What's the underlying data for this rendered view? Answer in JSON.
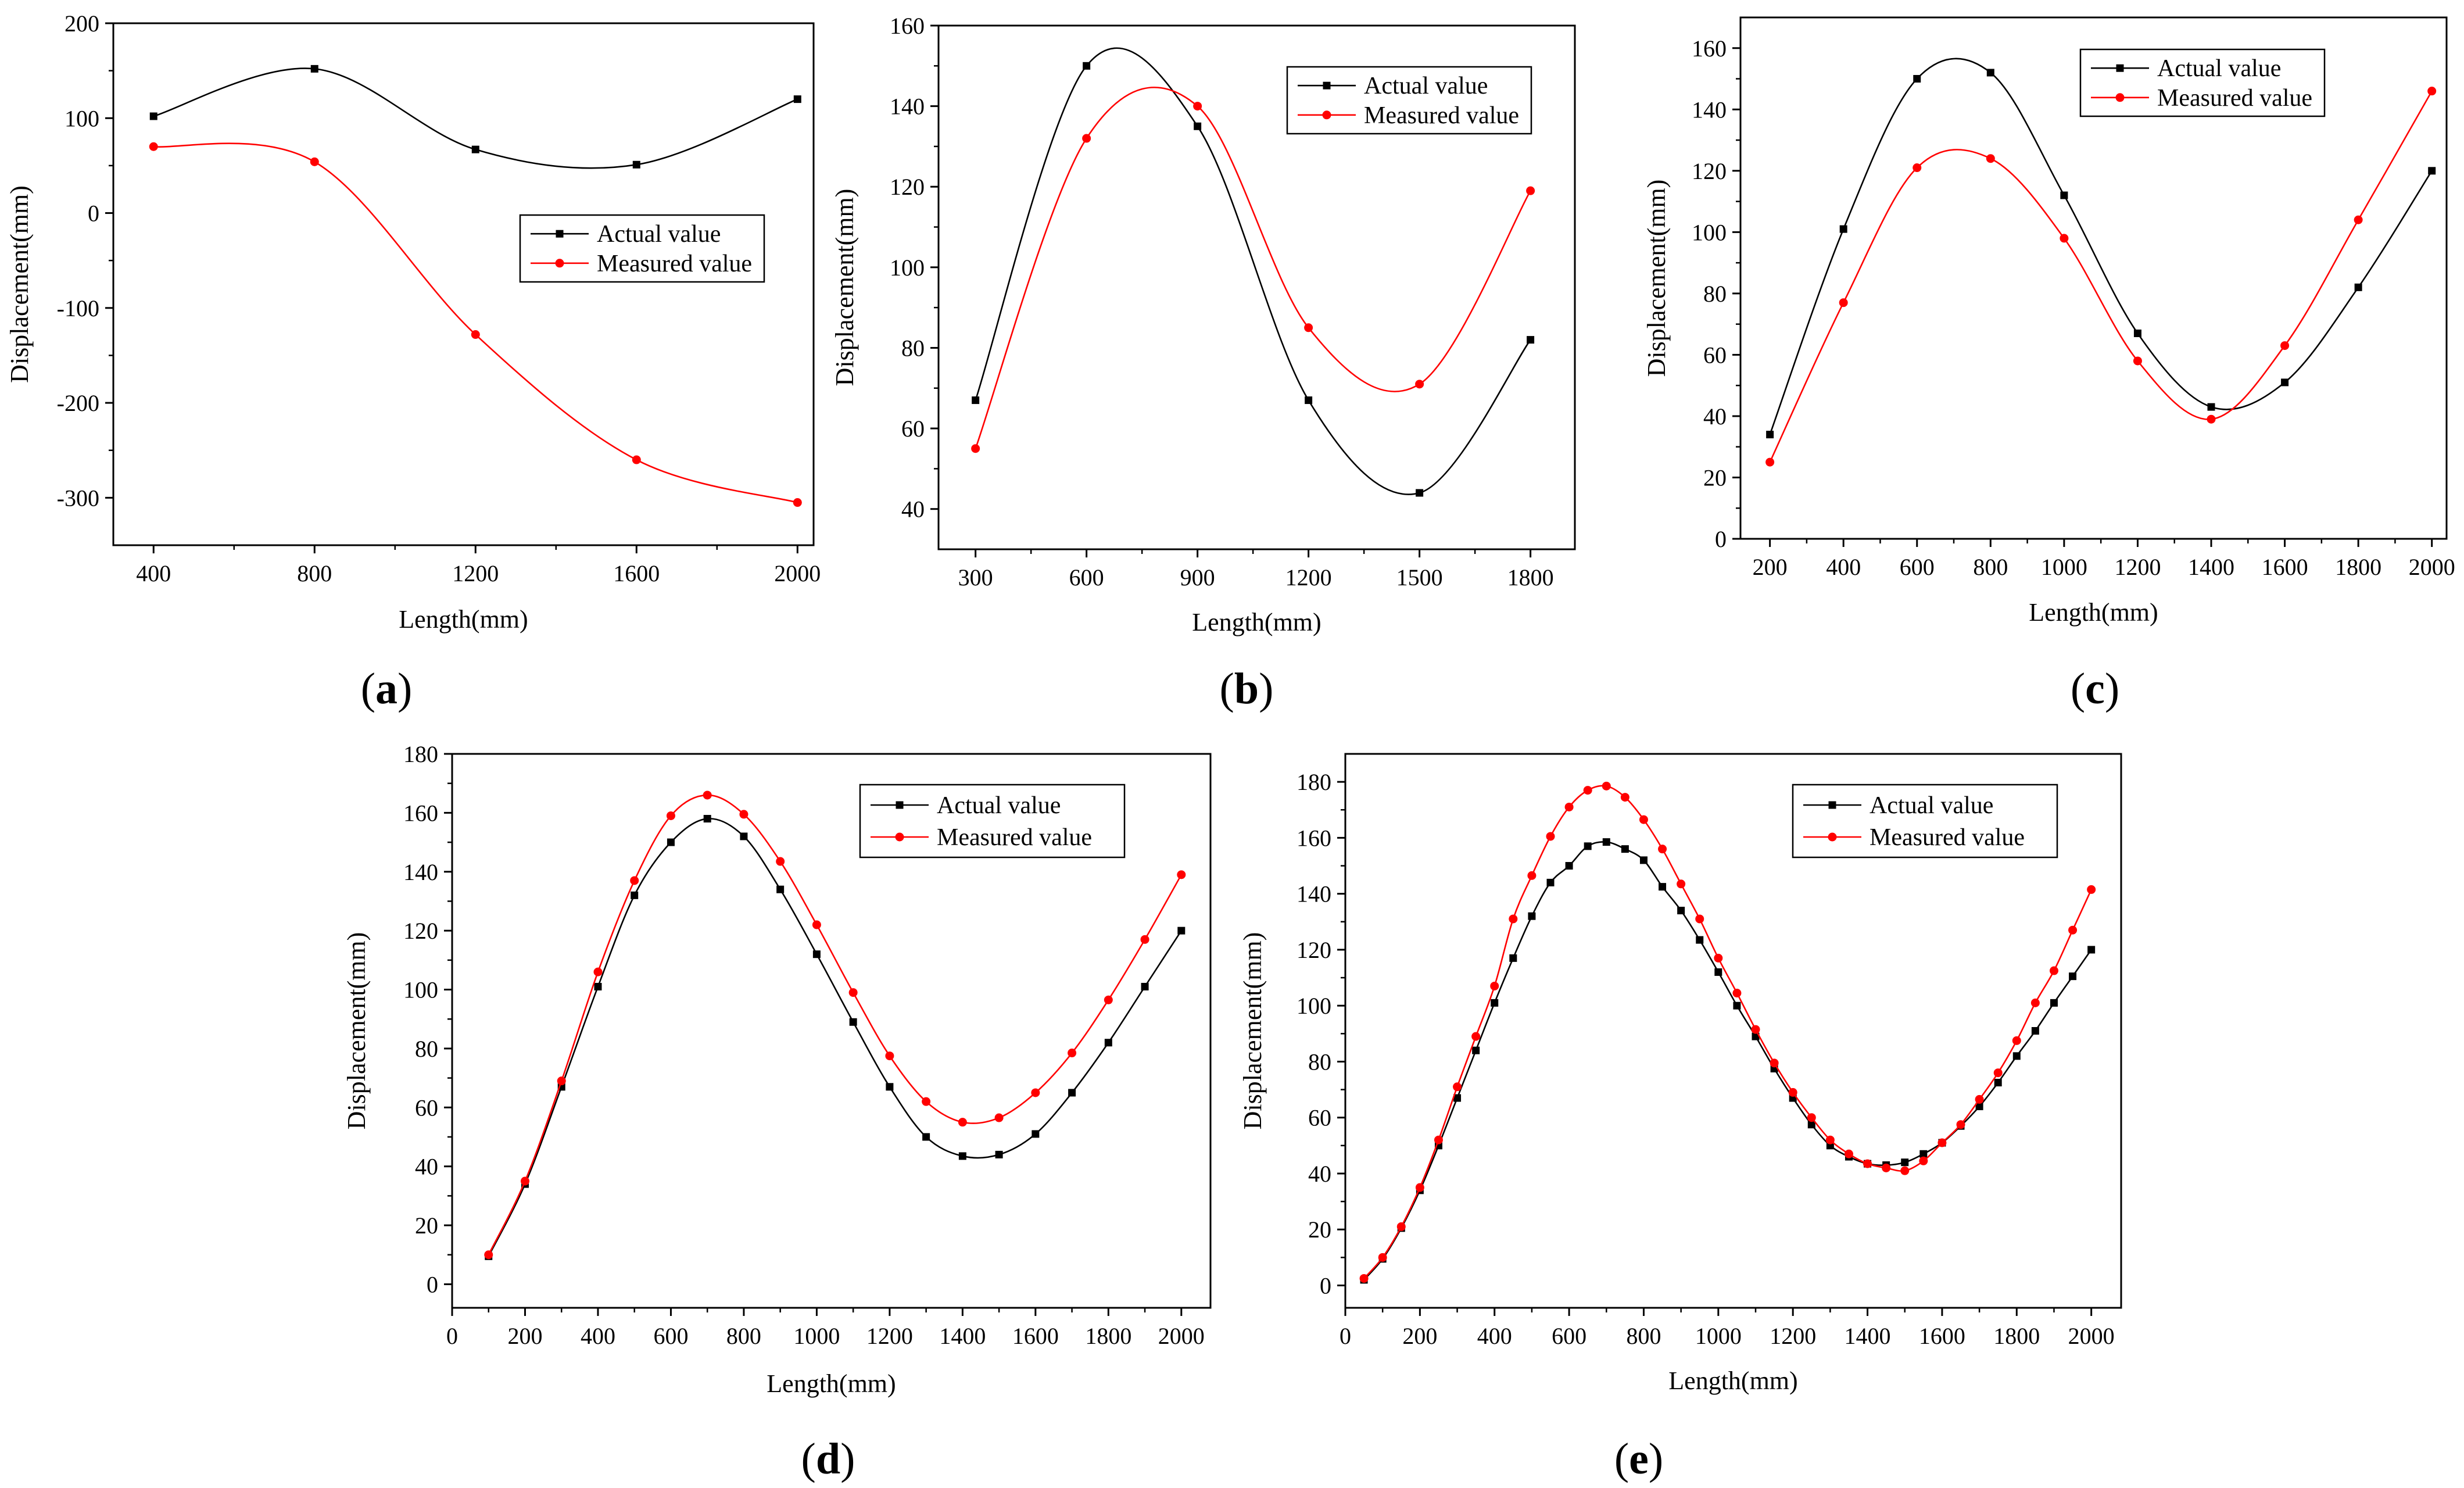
{
  "colors": {
    "actual": "#000000",
    "measured": "#ff0000",
    "axis": "#000000",
    "background": "#ffffff"
  },
  "chart_data": [
    {
      "id": "a",
      "type": "line",
      "panel_label": {
        "open": "(",
        "letter": "a",
        "close": ")"
      },
      "xlabel": "Length(mm)",
      "ylabel": "Displacement(mm)",
      "xlim": [
        300,
        2040
      ],
      "ylim": [
        -350,
        200
      ],
      "xticks": [
        400,
        800,
        1200,
        1600,
        2000
      ],
      "yticks": [
        -300,
        -200,
        -100,
        0,
        100,
        200
      ],
      "legend": {
        "position": "right-middle",
        "entries": [
          "Actual value",
          "Measured value"
        ]
      },
      "series": [
        {
          "name": "Actual value",
          "color": "#000000",
          "marker": "square",
          "x": [
            400,
            800,
            1200,
            1600,
            2000
          ],
          "y": [
            102,
            152,
            67,
            51,
            120
          ]
        },
        {
          "name": "Measured value",
          "color": "#ff0000",
          "marker": "circle",
          "x": [
            400,
            800,
            1200,
            1600,
            2000
          ],
          "y": [
            70,
            54,
            -128,
            -260,
            -305
          ]
        }
      ]
    },
    {
      "id": "b",
      "type": "line",
      "panel_label": {
        "open": "(",
        "letter": "b",
        "close": ")"
      },
      "xlabel": "Length(mm)",
      "ylabel": "Displacement(mm)",
      "xlim": [
        200,
        1920
      ],
      "ylim": [
        30,
        160
      ],
      "xticks": [
        300,
        600,
        900,
        1200,
        1500,
        1800
      ],
      "yticks": [
        40,
        60,
        80,
        100,
        120,
        140,
        160
      ],
      "legend": {
        "position": "top-right",
        "entries": [
          "Actual value",
          "Measured value"
        ]
      },
      "series": [
        {
          "name": "Actual value",
          "color": "#000000",
          "marker": "square",
          "x": [
            300,
            600,
            900,
            1200,
            1500,
            1800
          ],
          "y": [
            67,
            150,
            135,
            67,
            44,
            82
          ]
        },
        {
          "name": "Measured value",
          "color": "#ff0000",
          "marker": "circle",
          "x": [
            300,
            600,
            900,
            1200,
            1500,
            1800
          ],
          "y": [
            55,
            132,
            140,
            85,
            71,
            119
          ]
        }
      ]
    },
    {
      "id": "c",
      "type": "line",
      "panel_label": {
        "open": "(",
        "letter": "c",
        "close": ")"
      },
      "xlabel": "Length(mm)",
      "ylabel": "Displacement(mm)",
      "xlim": [
        120,
        2040
      ],
      "ylim": [
        0,
        170
      ],
      "xticks": [
        200,
        400,
        600,
        800,
        1000,
        1200,
        1400,
        1600,
        1800,
        2000
      ],
      "yticks": [
        0,
        20,
        40,
        60,
        80,
        100,
        120,
        140,
        160
      ],
      "legend": {
        "position": "top-right",
        "entries": [
          "Actual value",
          "Measured value"
        ]
      },
      "series": [
        {
          "name": "Actual value",
          "color": "#000000",
          "marker": "square",
          "x": [
            200,
            400,
            600,
            800,
            1000,
            1200,
            1400,
            1600,
            1800,
            2000
          ],
          "y": [
            34,
            101,
            150,
            152,
            112,
            67,
            43,
            51,
            82,
            120
          ]
        },
        {
          "name": "Measured value",
          "color": "#ff0000",
          "marker": "circle",
          "x": [
            200,
            400,
            600,
            800,
            1000,
            1200,
            1400,
            1600,
            1800,
            2000
          ],
          "y": [
            25,
            77,
            121,
            124,
            98,
            58,
            39,
            63,
            104,
            146
          ]
        }
      ]
    },
    {
      "id": "d",
      "type": "line",
      "panel_label": {
        "open": "(",
        "letter": "d",
        "close": ")"
      },
      "xlabel": "Length(mm)",
      "ylabel": "Displacement(mm)",
      "xlim": [
        0,
        2080
      ],
      "ylim": [
        -8,
        180
      ],
      "xticks": [
        0,
        200,
        400,
        600,
        800,
        1000,
        1200,
        1400,
        1600,
        1800,
        2000
      ],
      "yticks": [
        0,
        20,
        40,
        60,
        80,
        100,
        120,
        140,
        160,
        180
      ],
      "legend": {
        "position": "top-right",
        "entries": [
          "Actual value",
          "Measured value"
        ]
      },
      "series": [
        {
          "name": "Actual value",
          "color": "#000000",
          "marker": "square",
          "x": [
            100,
            200,
            300,
            400,
            500,
            600,
            700,
            800,
            900,
            1000,
            1100,
            1200,
            1300,
            1400,
            1500,
            1600,
            1700,
            1800,
            1900,
            2000
          ],
          "y": [
            9.5,
            34,
            67,
            101,
            132,
            150,
            158,
            152,
            134,
            112,
            89,
            67,
            50,
            43.5,
            44,
            51,
            65,
            82,
            101,
            120
          ]
        },
        {
          "name": "Measured value",
          "color": "#ff0000",
          "marker": "circle",
          "x": [
            100,
            200,
            300,
            400,
            500,
            600,
            700,
            800,
            900,
            1000,
            1100,
            1200,
            1300,
            1400,
            1500,
            1600,
            1700,
            1800,
            1900,
            2000
          ],
          "y": [
            10,
            35,
            69,
            106,
            137,
            159,
            166,
            159.5,
            143.5,
            122,
            99,
            77.5,
            62,
            55,
            56.5,
            65,
            78.5,
            96.5,
            117,
            139
          ]
        }
      ]
    },
    {
      "id": "e",
      "type": "line",
      "panel_label": {
        "open": "(",
        "letter": "e",
        "close": ")"
      },
      "xlabel": "Length(mm)",
      "ylabel": "Displacement(mm)",
      "xlim": [
        0,
        2080
      ],
      "ylim": [
        -8,
        190
      ],
      "xticks": [
        0,
        200,
        400,
        600,
        800,
        1000,
        1200,
        1400,
        1600,
        1800,
        2000
      ],
      "yticks": [
        0,
        20,
        40,
        60,
        80,
        100,
        120,
        140,
        160,
        180
      ],
      "legend": {
        "position": "top-right",
        "entries": [
          "Actual value",
          "Measured value"
        ]
      },
      "series": [
        {
          "name": "Actual value",
          "color": "#000000",
          "marker": "square",
          "x": [
            50,
            100,
            150,
            200,
            250,
            300,
            350,
            400,
            450,
            500,
            550,
            600,
            650,
            700,
            750,
            800,
            850,
            900,
            950,
            1000,
            1050,
            1100,
            1150,
            1200,
            1250,
            1300,
            1350,
            1400,
            1450,
            1500,
            1550,
            1600,
            1650,
            1700,
            1750,
            1800,
            1850,
            1900,
            1950,
            2000
          ],
          "y": [
            2,
            9.5,
            20.5,
            34,
            50,
            67,
            84,
            101,
            117,
            132,
            144,
            150,
            157,
            158.5,
            156,
            152,
            142.5,
            134,
            123.5,
            112,
            100,
            89,
            77.5,
            67,
            57.5,
            50,
            46,
            43.5,
            43,
            44,
            47,
            51,
            57,
            64,
            72.5,
            82,
            91,
            101,
            110.5,
            120
          ]
        },
        {
          "name": "Measured value",
          "color": "#ff0000",
          "marker": "circle",
          "x": [
            50,
            100,
            150,
            200,
            250,
            300,
            350,
            400,
            450,
            500,
            550,
            600,
            650,
            700,
            750,
            800,
            850,
            900,
            950,
            1000,
            1050,
            1100,
            1150,
            1200,
            1250,
            1300,
            1350,
            1400,
            1450,
            1500,
            1550,
            1600,
            1650,
            1700,
            1750,
            1800,
            1850,
            1900,
            1950,
            2000
          ],
          "y": [
            2.5,
            10,
            21,
            35,
            52,
            71,
            89,
            107,
            131,
            146.5,
            160.5,
            171,
            177,
            178.5,
            174.5,
            166.5,
            156,
            143.5,
            131,
            117,
            104.5,
            91.5,
            79.5,
            69,
            60,
            52,
            47,
            43.5,
            42,
            41,
            44.5,
            51,
            57.5,
            66.5,
            76,
            87.5,
            101,
            112.5,
            127,
            141.5
          ]
        }
      ]
    }
  ]
}
